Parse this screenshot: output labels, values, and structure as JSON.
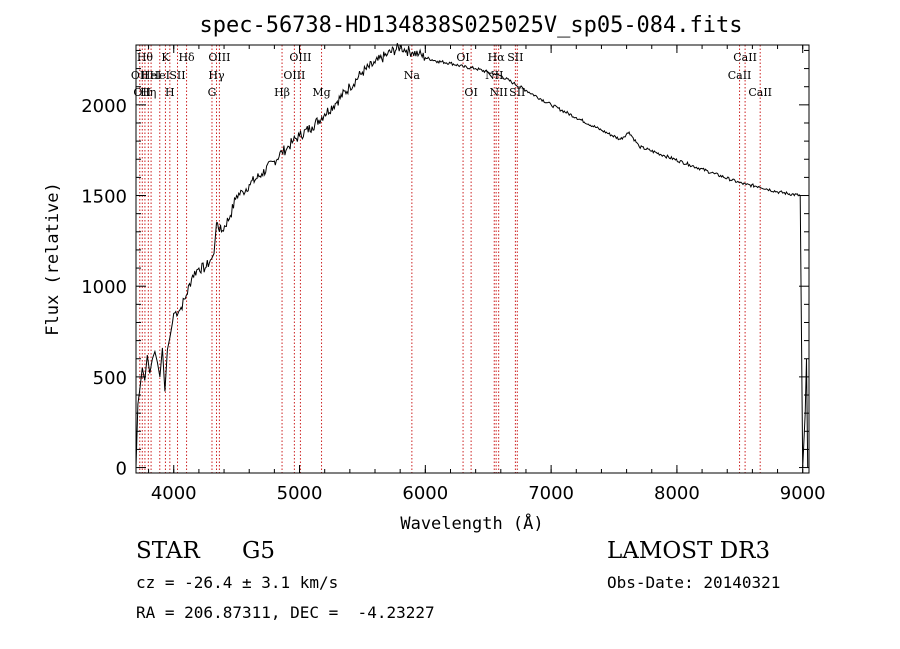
{
  "chart_data": {
    "type": "line",
    "title": "spec-56738-HD134838S025025V_sp05-084.fits",
    "xlabel": "Wavelength (Å)",
    "ylabel": "Flux (relative)",
    "xlim": [
      3700,
      9050
    ],
    "ylim": [
      -30,
      2330
    ],
    "xticks": [
      4000,
      5000,
      6000,
      7000,
      8000,
      9000
    ],
    "yticks": [
      0,
      500,
      1000,
      1500,
      2000
    ],
    "grid": false,
    "series": [
      {
        "name": "flux",
        "x": [
          3700,
          3715,
          3730,
          3750,
          3770,
          3790,
          3810,
          3830,
          3850,
          3870,
          3890,
          3910,
          3930,
          3950,
          3970,
          3990,
          4000,
          4050,
          4100,
          4150,
          4200,
          4250,
          4300,
          4320,
          4340,
          4380,
          4450,
          4500,
          4550,
          4600,
          4700,
          4800,
          4860,
          4900,
          4950,
          5000,
          5100,
          5200,
          5300,
          5400,
          5500,
          5600,
          5700,
          5800,
          5850,
          5900,
          5950,
          6000,
          6100,
          6200,
          6300,
          6400,
          6500,
          6550,
          6600,
          6700,
          6800,
          7000,
          7200,
          7400,
          7550,
          7620,
          7700,
          7900,
          8100,
          8300,
          8500,
          8550,
          8650,
          8800,
          8980,
          9000,
          9020,
          9030,
          9040
        ],
        "y": [
          0,
          350,
          430,
          550,
          480,
          620,
          520,
          600,
          640,
          580,
          500,
          660,
          420,
          650,
          720,
          800,
          850,
          870,
          950,
          1060,
          1100,
          1100,
          1150,
          1180,
          1350,
          1300,
          1390,
          1500,
          1520,
          1560,
          1620,
          1690,
          1740,
          1760,
          1800,
          1830,
          1880,
          1950,
          2020,
          2100,
          2180,
          2230,
          2280,
          2320,
          2300,
          2290,
          2280,
          2260,
          2240,
          2230,
          2210,
          2200,
          2180,
          2170,
          2160,
          2120,
          2080,
          2000,
          1930,
          1860,
          1810,
          1850,
          1770,
          1720,
          1670,
          1620,
          1570,
          1560,
          1550,
          1520,
          1500,
          0,
          300,
          600,
          0
        ]
      }
    ],
    "lines": [
      {
        "x": 3730,
        "label": "OII",
        "row": 1
      },
      {
        "x": 3750,
        "label": "OII",
        "row": 2
      },
      {
        "x": 3771,
        "label": "Hθ",
        "row": 0
      },
      {
        "x": 3798,
        "label": "Hη",
        "row": 2
      },
      {
        "x": 3820,
        "label": "HeI",
        "row": 1
      },
      {
        "x": 3889,
        "label": "HeI",
        "row": 1
      },
      {
        "x": 3934,
        "label": "K",
        "row": 0
      },
      {
        "x": 3969,
        "label": "H",
        "row": 2
      },
      {
        "x": 4030,
        "label": "SII",
        "row": 1
      },
      {
        "x": 4102,
        "label": "Hδ",
        "row": 0
      },
      {
        "x": 4304,
        "label": "G",
        "row": 2
      },
      {
        "x": 4340,
        "label": "Hγ",
        "row": 1
      },
      {
        "x": 4363,
        "label": "OIII",
        "row": 0
      },
      {
        "x": 4861,
        "label": "Hβ",
        "row": 2
      },
      {
        "x": 4959,
        "label": "OIII",
        "row": 1
      },
      {
        "x": 5007,
        "label": "OIII",
        "row": 0
      },
      {
        "x": 5175,
        "label": "Mg",
        "row": 2
      },
      {
        "x": 5893,
        "label": "Na",
        "row": 1
      },
      {
        "x": 6300,
        "label": "OI",
        "row": 0
      },
      {
        "x": 6364,
        "label": "OI",
        "row": 2
      },
      {
        "x": 6548,
        "label": "NII",
        "row": 1
      },
      {
        "x": 6563,
        "label": "Hα",
        "row": 0
      },
      {
        "x": 6583,
        "label": "NII",
        "row": 2
      },
      {
        "x": 6716,
        "label": "SII",
        "row": 0
      },
      {
        "x": 6731,
        "label": "SII",
        "row": 2
      },
      {
        "x": 8498,
        "label": "CaII",
        "row": 1
      },
      {
        "x": 8542,
        "label": "CaII",
        "row": 0
      },
      {
        "x": 8662,
        "label": "CaII",
        "row": 2
      }
    ]
  },
  "info": {
    "object_type": "STAR",
    "subclass": "G5",
    "survey": "LAMOST DR3",
    "cz": "cz = -26.4 ± 3.1 km/s",
    "obs_date": "Obs-Date: 20140321",
    "coords": "RA = 206.87311, DEC =  -4.23227"
  },
  "colors": {
    "line_markers": "#cc2222",
    "axis": "#000000"
  }
}
